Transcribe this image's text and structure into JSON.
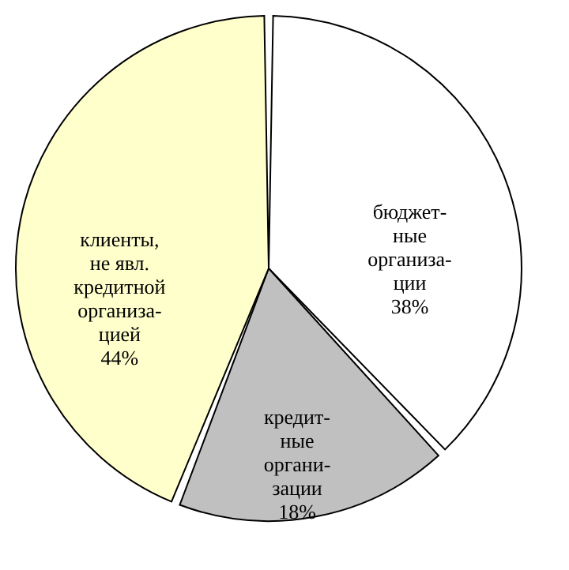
{
  "chart_data": {
    "type": "pie",
    "categories": [
      "бюджет-\nные\nорганиза-\nции",
      "кредит-\nные\nоргани-\nзации",
      "клиенты,\nне явл.\nкредитной\nорганиза-\nцией"
    ],
    "values": [
      38,
      18,
      44
    ],
    "value_labels": [
      "38%",
      "18%",
      "44%"
    ],
    "colors": [
      "#ffffff",
      "#c0c0c0",
      "#ffffcc"
    ],
    "legend": false
  }
}
